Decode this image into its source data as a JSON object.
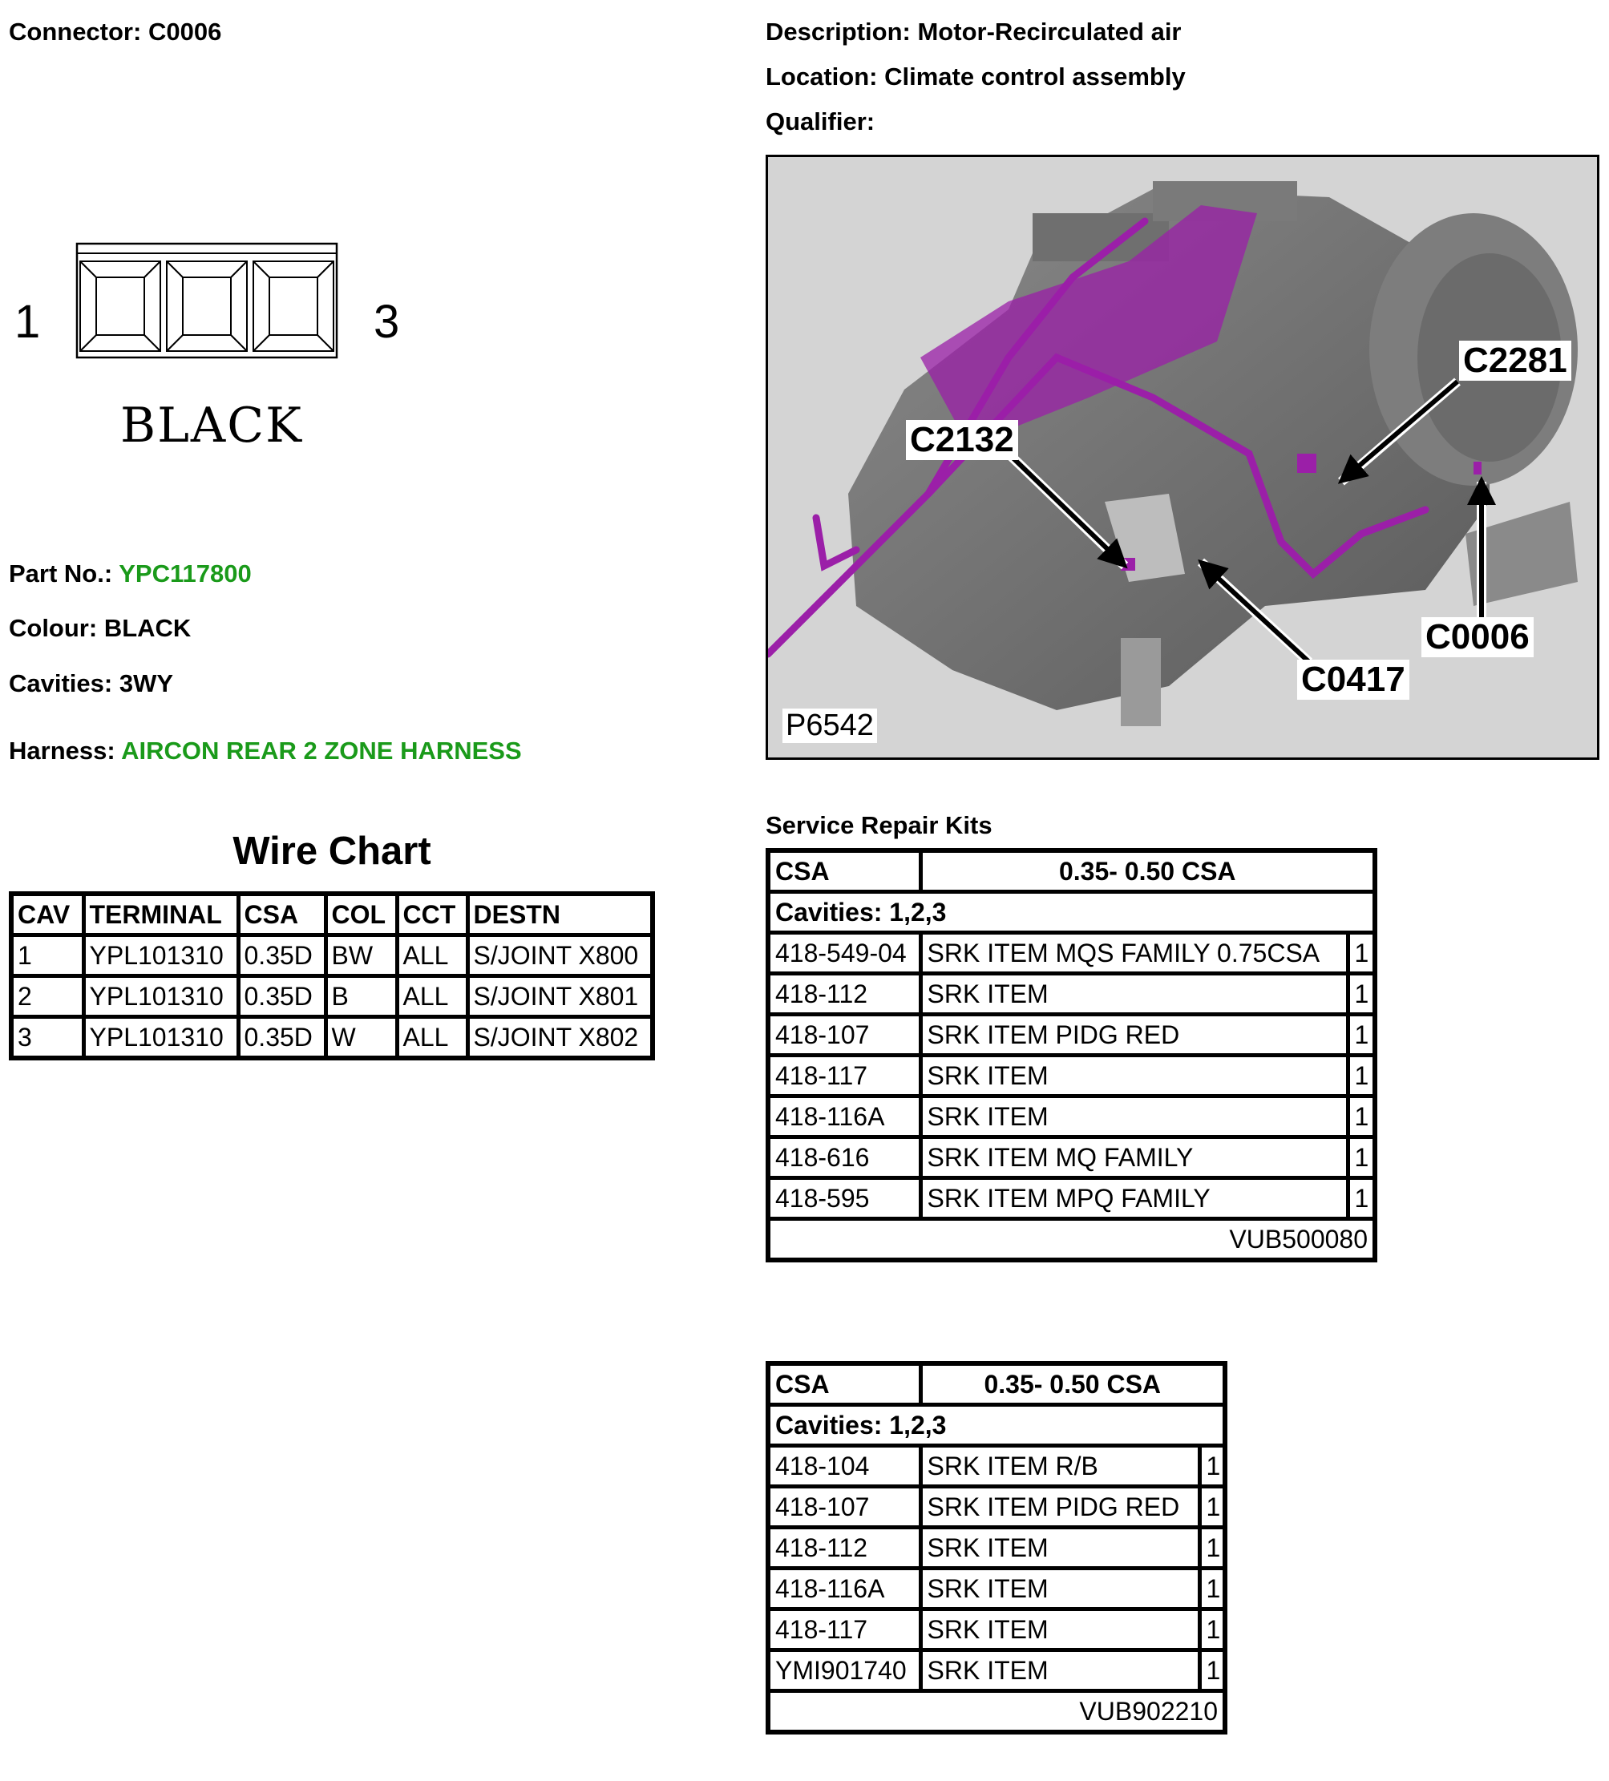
{
  "connector": {
    "label": "Connector:",
    "value": "C0006"
  },
  "description": {
    "label": "Description:",
    "value": "Motor-Recirculated air"
  },
  "location": {
    "label": "Location:",
    "value": "Climate control assembly"
  },
  "qualifier": {
    "label": "Qualifier:",
    "value": ""
  },
  "face_view": {
    "pin_left": "1",
    "pin_right": "3",
    "colour_text": "BLACK",
    "cavities": 3
  },
  "part_no": {
    "label": "Part No.:",
    "value": "YPC117800"
  },
  "colour": {
    "label": "Colour:",
    "value": "BLACK"
  },
  "cavities": {
    "label": "Cavities:",
    "value": "3WY"
  },
  "harness": {
    "label": "Harness:",
    "value": "AIRCON REAR 2 ZONE HARNESS"
  },
  "colors": {
    "link": "#1a9a1a",
    "harness_highlight": "#9b1fa8",
    "photo_bg": "#d4d4d4"
  },
  "photo": {
    "id": "P6542",
    "callouts": [
      "C2281",
      "C2132",
      "C0417",
      "C0006"
    ]
  },
  "wire_chart": {
    "title": "Wire Chart",
    "headers": [
      "CAV",
      "TERMINAL",
      "CSA",
      "COL",
      "CCT",
      "DESTN"
    ],
    "rows": [
      [
        "1",
        "YPL101310",
        "0.35D",
        "BW",
        "ALL",
        "S/JOINT X800"
      ],
      [
        "2",
        "YPL101310",
        "0.35D",
        "B",
        "ALL",
        "S/JOINT X801"
      ],
      [
        "3",
        "YPL101310",
        "0.35D",
        "W",
        "ALL",
        "S/JOINT X802"
      ]
    ]
  },
  "srk": {
    "title": "Service Repair Kits",
    "kits": [
      {
        "csa_label": "CSA",
        "csa_value": "0.35- 0.50 CSA",
        "cavities": "Cavities: 1,2,3",
        "items": [
          [
            "418-549-04",
            "SRK ITEM MQS FAMILY 0.75CSA",
            "1"
          ],
          [
            "418-112",
            "SRK ITEM",
            "1"
          ],
          [
            "418-107",
            "SRK ITEM PIDG RED",
            "1"
          ],
          [
            "418-117",
            "SRK ITEM",
            "1"
          ],
          [
            "418-116A",
            "SRK ITEM",
            "1"
          ],
          [
            "418-616",
            "SRK ITEM MQ FAMILY",
            "1"
          ],
          [
            "418-595",
            "SRK ITEM MPQ FAMILY",
            "1"
          ]
        ],
        "kit_no": "VUB500080"
      },
      {
        "csa_label": "CSA",
        "csa_value": "0.35- 0.50 CSA",
        "cavities": "Cavities: 1,2,3",
        "items": [
          [
            "418-104",
            "SRK ITEM R/B",
            "1"
          ],
          [
            "418-107",
            "SRK ITEM PIDG RED",
            "1"
          ],
          [
            "418-112",
            "SRK ITEM",
            "1"
          ],
          [
            "418-116A",
            "SRK ITEM",
            "1"
          ],
          [
            "418-117",
            "SRK ITEM",
            "1"
          ],
          [
            "YMI901740",
            "SRK ITEM",
            "1"
          ]
        ],
        "kit_no": "VUB902210"
      }
    ]
  }
}
